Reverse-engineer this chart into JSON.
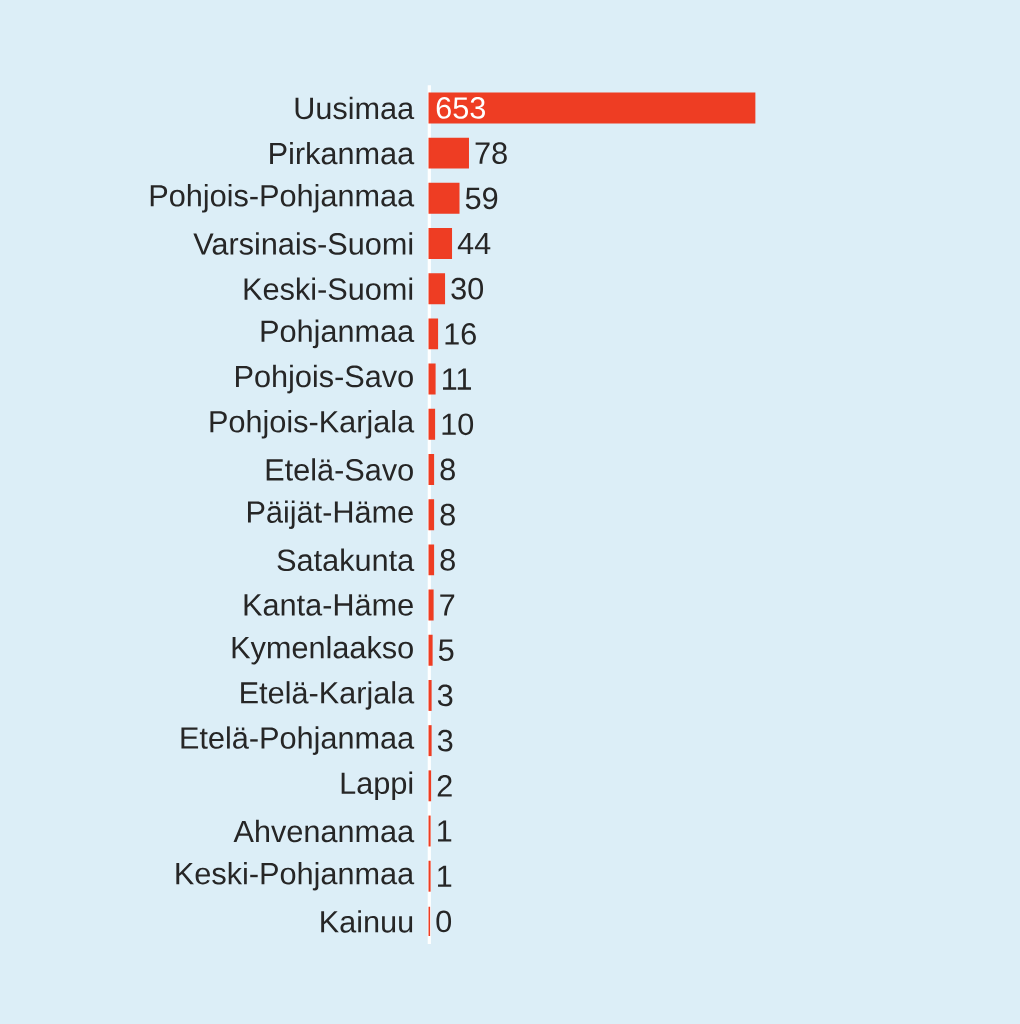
{
  "chart_data": {
    "type": "bar",
    "orientation": "horizontal",
    "data_labels": true,
    "color": "#ee3d23",
    "categories": [
      "Uusimaa",
      "Pirkanmaa",
      "Pohjois-Pohjanmaa",
      "Varsinais-Suomi",
      "Keski-Suomi",
      "Pohjanmaa",
      "Pohjois-Savo",
      "Pohjois-Karjala",
      "Etelä-Savo",
      "Päijät-Häme",
      "Satakunta",
      "Kanta-Häme",
      "Kymenlaakso",
      "Etelä-Karjala",
      "Etelä-Pohjanmaa",
      "Lappi",
      "Ahvenanmaa",
      "Keski-Pohjanmaa",
      "Kainuu"
    ],
    "values": [
      653,
      78,
      59,
      44,
      30,
      16,
      11,
      10,
      8,
      8,
      8,
      7,
      5,
      3,
      3,
      2,
      1,
      1,
      0
    ]
  }
}
